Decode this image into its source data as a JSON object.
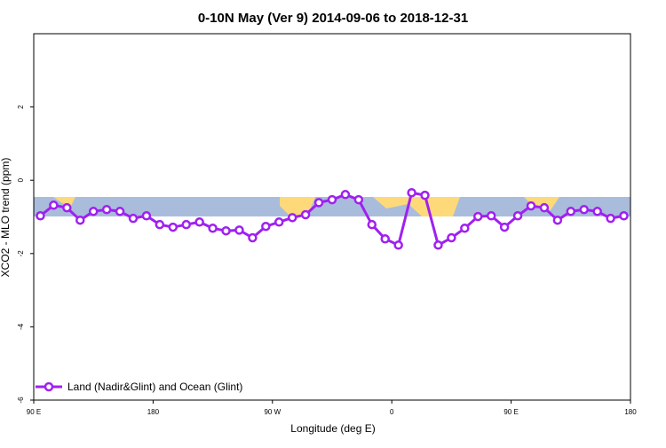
{
  "chart_data": {
    "type": "line",
    "title": "0-10N May (Ver 9)   2014-09-06 to 2018-12-31",
    "x_label": "Longitude (deg E)",
    "y_label": "XCO2 - MLO trend (ppm)",
    "xlim": [
      90,
      540
    ],
    "xticks": [
      {
        "value": 90,
        "label": "90 E"
      },
      180,
      {
        "value": 270,
        "label": "90 W"
      },
      {
        "value": 360,
        "label": "0"
      },
      {
        "value": 450,
        "label": "90 E"
      },
      {
        "value": 540,
        "label": "180"
      }
    ],
    "ylim": [
      -6,
      4
    ],
    "yticks": [
      -6,
      -4,
      -2,
      0,
      2
    ],
    "legend": "bottom-left",
    "x": [
      95,
      105,
      115,
      125,
      135,
      145,
      155,
      165,
      175,
      185,
      195,
      205,
      215,
      225,
      235,
      245,
      255,
      265,
      275,
      285,
      295,
      305,
      315,
      325,
      335,
      345,
      355,
      365,
      375,
      385,
      395,
      405,
      415,
      425,
      435,
      445,
      455,
      465,
      475,
      485,
      495,
      505,
      515,
      525,
      535
    ],
    "series": [
      {
        "name": "Land (Nadir&Glint) and Ocean (Glint)",
        "color": "#a020f0",
        "values": [
          -0.97,
          -0.68,
          -0.75,
          -1.09,
          -0.85,
          -0.8,
          -0.85,
          -1.04,
          -0.97,
          -1.21,
          -1.28,
          -1.21,
          -1.14,
          -1.31,
          -1.38,
          -1.36,
          -1.57,
          -1.26,
          -1.14,
          -1.02,
          -0.94,
          -0.61,
          -0.53,
          -0.39,
          -0.53,
          -1.21,
          -1.6,
          -1.77,
          -0.34,
          -0.41,
          -1.77,
          -1.57,
          -1.31,
          -0.99,
          -0.97,
          -1.28,
          -0.97,
          -0.7,
          -0.75,
          -1.09,
          -0.85,
          -0.8,
          -0.85,
          -1.04,
          -0.97
        ]
      }
    ]
  }
}
